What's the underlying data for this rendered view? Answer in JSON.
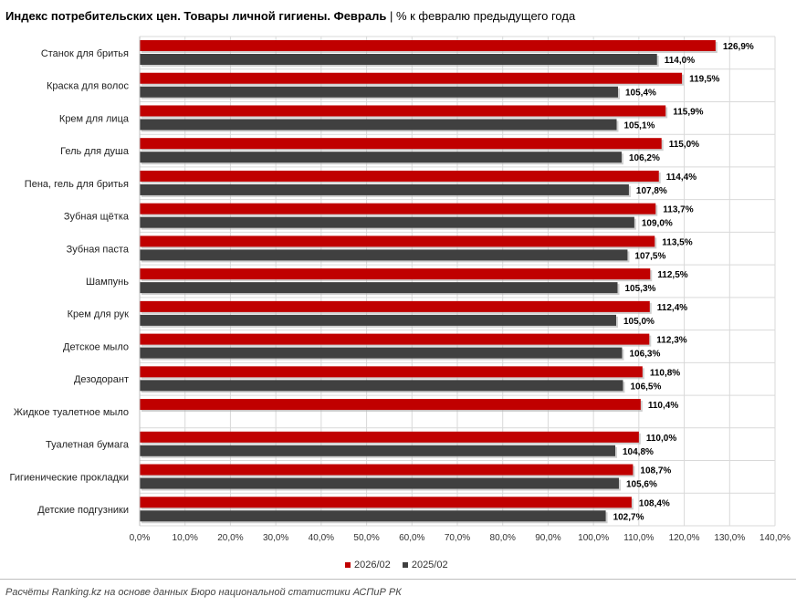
{
  "header": {
    "title_bold": "Индекс потребительских цен. Товары личной гигиены. Февраль",
    "title_rest": " | % к февралю предыдущего года"
  },
  "legend": {
    "series_a": "2026/02",
    "series_b": "2025/02"
  },
  "footer": {
    "source": "Расчёты Ranking.kz на основе данных Бюро национальной статистики АСПиР РК"
  },
  "colors": {
    "series_a": "#c00000",
    "series_b": "#404040",
    "grid": "#d9d9d9"
  },
  "chart_data": {
    "type": "bar",
    "orientation": "horizontal",
    "title": "Индекс потребительских цен. Товары личной гигиены. Февраль | % к февралю предыдущего года",
    "categories": [
      "Станок для бритья",
      "Краска для волос",
      "Крем для лица",
      "Гель для душа",
      "Пена, гель для бритья",
      "Зубная щётка",
      "Зубная паста",
      "Шампунь",
      "Крем для рук",
      "Детское мыло",
      "Дезодорант",
      "Жидкое туалетное мыло",
      "Туалетная бумага",
      "Гигиенические прокладки",
      "Детские подгузники"
    ],
    "series": [
      {
        "name": "2026/02",
        "values": [
          126.9,
          119.5,
          115.9,
          115.0,
          114.4,
          113.7,
          113.5,
          112.5,
          112.4,
          112.3,
          110.8,
          110.4,
          110.0,
          108.7,
          108.4
        ],
        "labels": [
          "126,9%",
          "119,5%",
          "115,9%",
          "115,0%",
          "114,4%",
          "113,7%",
          "113,5%",
          "112,5%",
          "112,4%",
          "112,3%",
          "110,8%",
          "110,4%",
          "110,0%",
          "108,7%",
          "108,4%"
        ]
      },
      {
        "name": "2025/02",
        "values": [
          114.0,
          105.4,
          105.1,
          106.2,
          107.8,
          109.0,
          107.5,
          105.3,
          105.0,
          106.3,
          106.5,
          null,
          104.8,
          105.6,
          102.7
        ],
        "labels": [
          "114,0%",
          "105,4%",
          "105,1%",
          "106,2%",
          "107,8%",
          "109,0%",
          "107,5%",
          "105,3%",
          "105,0%",
          "106,3%",
          "106,5%",
          null,
          "104,8%",
          "105,6%",
          "102,7%"
        ]
      }
    ],
    "xlim": [
      0,
      140
    ],
    "xticks": [
      0,
      10,
      20,
      30,
      40,
      50,
      60,
      70,
      80,
      90,
      100,
      110,
      120,
      130,
      140
    ],
    "xtick_labels": [
      "0,0%",
      "10,0%",
      "20,0%",
      "30,0%",
      "40,0%",
      "50,0%",
      "60,0%",
      "70,0%",
      "80,0%",
      "90,0%",
      "100,0%",
      "110,0%",
      "120,0%",
      "130,0%",
      "140,0%"
    ],
    "grid": true,
    "legend_position": "bottom",
    "xlabel": "",
    "ylabel": ""
  }
}
